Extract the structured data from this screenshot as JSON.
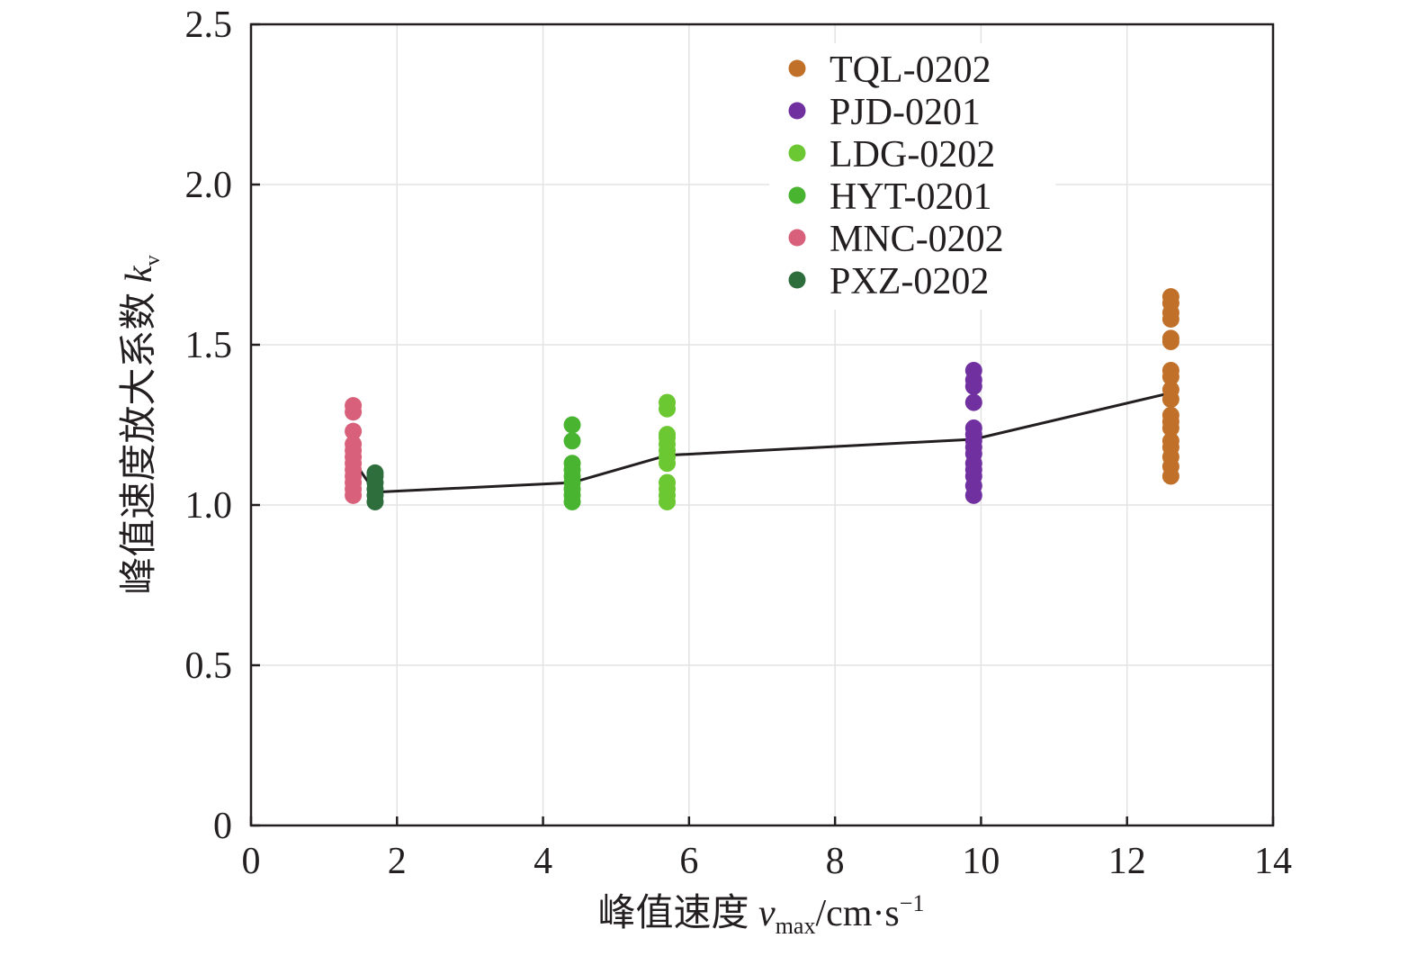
{
  "chart_data": {
    "type": "scatter",
    "title": "",
    "xlabel": "峰值速度",
    "xlabel_symbol": "v",
    "xlabel_subscript": "max",
    "xlabel_unit": "/cm·s",
    "xlabel_unit_exponent": "−1",
    "ylabel": "峰值速度放大系数",
    "ylabel_symbol": "k",
    "ylabel_subscript": "v",
    "xlim": [
      0,
      14
    ],
    "ylim": [
      0,
      2.5
    ],
    "x_ticks": [
      0,
      2,
      4,
      6,
      8,
      10,
      12,
      14
    ],
    "x_tick_labels": [
      "0",
      "2",
      "4",
      "6",
      "8",
      "10",
      "12",
      "14"
    ],
    "y_ticks": [
      0,
      0.5,
      1.0,
      1.5,
      2.0,
      2.5
    ],
    "y_tick_labels": [
      "0",
      "0.5",
      "1.0",
      "1.5",
      "2.0",
      "2.5"
    ],
    "grid": true,
    "legend_position": "top-right",
    "series": [
      {
        "name": "TQL-0202",
        "color": "#c07028",
        "x": 12.6,
        "values": [
          1.09,
          1.12,
          1.15,
          1.18,
          1.2,
          1.24,
          1.26,
          1.28,
          1.33,
          1.36,
          1.4,
          1.42,
          1.51,
          1.52,
          1.58,
          1.6,
          1.63,
          1.65
        ]
      },
      {
        "name": "PJD-0201",
        "color": "#7030a0",
        "x": 9.9,
        "values": [
          1.03,
          1.06,
          1.09,
          1.11,
          1.13,
          1.16,
          1.18,
          1.2,
          1.22,
          1.24,
          1.32,
          1.37,
          1.39,
          1.42
        ]
      },
      {
        "name": "LDG-0202",
        "color": "#6cc832",
        "x": 5.7,
        "values": [
          1.01,
          1.03,
          1.05,
          1.07,
          1.13,
          1.15,
          1.17,
          1.19,
          1.21,
          1.22,
          1.3,
          1.32
        ]
      },
      {
        "name": "HYT-0201",
        "color": "#48b430",
        "x": 4.4,
        "values": [
          1.01,
          1.03,
          1.05,
          1.07,
          1.09,
          1.11,
          1.13,
          1.2,
          1.25
        ]
      },
      {
        "name": "MNC-0202",
        "color": "#d8607a",
        "x": 1.4,
        "values": [
          1.03,
          1.05,
          1.07,
          1.09,
          1.11,
          1.13,
          1.15,
          1.17,
          1.19,
          1.23,
          1.29,
          1.31
        ]
      },
      {
        "name": "PXZ-0202",
        "color": "#2e6e3c",
        "x": 1.7,
        "values": [
          1.01,
          1.03,
          1.05,
          1.07,
          1.09,
          1.1
        ]
      }
    ],
    "mean_line": {
      "color": "#231f20",
      "x": [
        1.4,
        1.7,
        4.4,
        5.7,
        9.9,
        12.6
      ],
      "y": [
        1.14,
        1.04,
        1.07,
        1.155,
        1.205,
        1.35
      ]
    }
  }
}
